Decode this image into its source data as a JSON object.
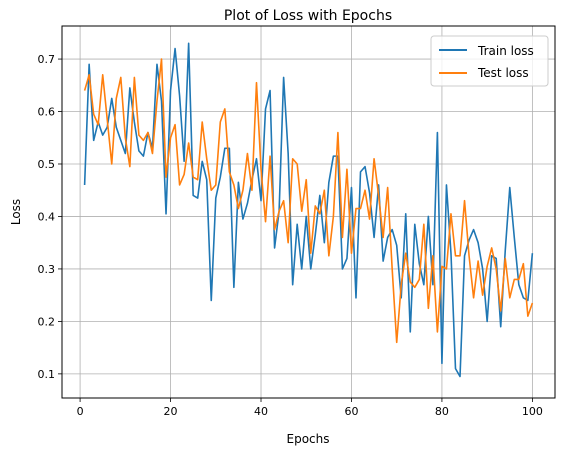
{
  "chart_data": {
    "type": "line",
    "title": "Plot of Loss with Epochs",
    "xlabel": "Epochs",
    "ylabel": "Loss",
    "xlim": [
      -4,
      105
    ],
    "ylim": [
      0.054,
      0.763
    ],
    "xticks": [
      0,
      20,
      40,
      60,
      80,
      100
    ],
    "yticks": [
      0.1,
      0.2,
      0.3,
      0.4,
      0.5,
      0.6,
      0.7
    ],
    "grid": true,
    "legend_position": "top-right",
    "x": [
      1,
      2,
      3,
      4,
      5,
      6,
      7,
      8,
      9,
      10,
      11,
      12,
      13,
      14,
      15,
      16,
      17,
      18,
      19,
      20,
      21,
      22,
      23,
      24,
      25,
      26,
      27,
      28,
      29,
      30,
      31,
      32,
      33,
      34,
      35,
      36,
      37,
      38,
      39,
      40,
      41,
      42,
      43,
      44,
      45,
      46,
      47,
      48,
      49,
      50,
      51,
      52,
      53,
      54,
      55,
      56,
      57,
      58,
      59,
      60,
      61,
      62,
      63,
      64,
      65,
      66,
      67,
      68,
      69,
      70,
      71,
      72,
      73,
      74,
      75,
      76,
      77,
      78,
      79,
      80,
      81,
      82,
      83,
      84,
      85,
      86,
      87,
      88,
      89,
      90,
      91,
      92,
      93,
      94,
      95,
      96,
      97,
      98,
      99,
      100
    ],
    "series": [
      {
        "name": "Train loss",
        "color": "#1f77b4",
        "values": [
          0.46,
          0.69,
          0.545,
          0.58,
          0.555,
          0.57,
          0.625,
          0.57,
          0.545,
          0.52,
          0.645,
          0.58,
          0.525,
          0.515,
          0.56,
          0.53,
          0.69,
          0.62,
          0.405,
          0.64,
          0.72,
          0.63,
          0.505,
          0.73,
          0.44,
          0.435,
          0.505,
          0.47,
          0.24,
          0.435,
          0.475,
          0.53,
          0.53,
          0.265,
          0.465,
          0.395,
          0.425,
          0.47,
          0.51,
          0.43,
          0.605,
          0.64,
          0.34,
          0.41,
          0.665,
          0.52,
          0.27,
          0.385,
          0.3,
          0.4,
          0.3,
          0.365,
          0.44,
          0.35,
          0.465,
          0.515,
          0.515,
          0.3,
          0.32,
          0.455,
          0.245,
          0.485,
          0.495,
          0.445,
          0.36,
          0.46,
          0.315,
          0.36,
          0.375,
          0.345,
          0.245,
          0.405,
          0.18,
          0.385,
          0.31,
          0.27,
          0.4,
          0.27,
          0.56,
          0.12,
          0.46,
          0.33,
          0.11,
          0.095,
          0.325,
          0.355,
          0.375,
          0.35,
          0.3,
          0.2,
          0.325,
          0.32,
          0.19,
          0.335,
          0.455,
          0.36,
          0.27,
          0.245,
          0.24,
          0.33
        ]
      },
      {
        "name": "Test loss",
        "color": "#ff7f0e",
        "values": [
          0.64,
          0.67,
          0.595,
          0.575,
          0.67,
          0.585,
          0.5,
          0.625,
          0.665,
          0.55,
          0.495,
          0.665,
          0.555,
          0.545,
          0.56,
          0.52,
          0.62,
          0.7,
          0.475,
          0.55,
          0.575,
          0.46,
          0.48,
          0.54,
          0.475,
          0.47,
          0.58,
          0.51,
          0.45,
          0.46,
          0.58,
          0.605,
          0.485,
          0.46,
          0.415,
          0.45,
          0.52,
          0.45,
          0.655,
          0.49,
          0.39,
          0.515,
          0.375,
          0.41,
          0.43,
          0.35,
          0.51,
          0.5,
          0.41,
          0.47,
          0.33,
          0.42,
          0.405,
          0.45,
          0.325,
          0.4,
          0.56,
          0.36,
          0.49,
          0.33,
          0.415,
          0.415,
          0.45,
          0.395,
          0.51,
          0.44,
          0.36,
          0.455,
          0.3,
          0.16,
          0.27,
          0.33,
          0.275,
          0.265,
          0.28,
          0.385,
          0.225,
          0.325,
          0.18,
          0.305,
          0.3,
          0.405,
          0.325,
          0.325,
          0.43,
          0.325,
          0.245,
          0.315,
          0.25,
          0.305,
          0.34,
          0.3,
          0.22,
          0.32,
          0.245,
          0.28,
          0.28,
          0.31,
          0.21,
          0.235
        ]
      }
    ]
  }
}
